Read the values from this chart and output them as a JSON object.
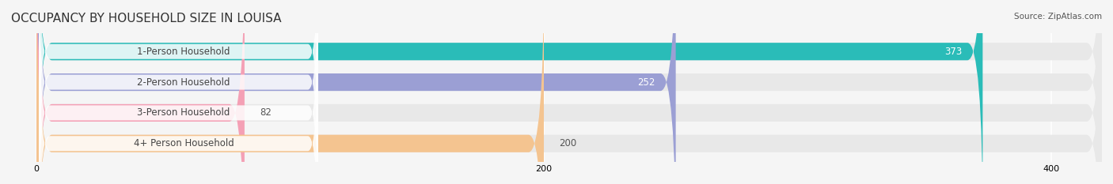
{
  "title": "OCCUPANCY BY HOUSEHOLD SIZE IN LOUISA",
  "source": "Source: ZipAtlas.com",
  "categories": [
    "1-Person Household",
    "2-Person Household",
    "3-Person Household",
    "4+ Person Household"
  ],
  "values": [
    373,
    252,
    82,
    200
  ],
  "bar_colors": [
    "#2abcb8",
    "#9b9fd4",
    "#f4a0b5",
    "#f4c490"
  ],
  "label_colors": [
    "white",
    "white",
    "#555555",
    "#555555"
  ],
  "xlim": [
    -10,
    420
  ],
  "xticks": [
    0,
    200,
    400
  ],
  "bar_height": 0.55,
  "background_color": "#f5f5f5",
  "bar_background_color": "#e8e8e8",
  "title_fontsize": 11,
  "label_fontsize": 8.5,
  "value_fontsize": 8.5
}
